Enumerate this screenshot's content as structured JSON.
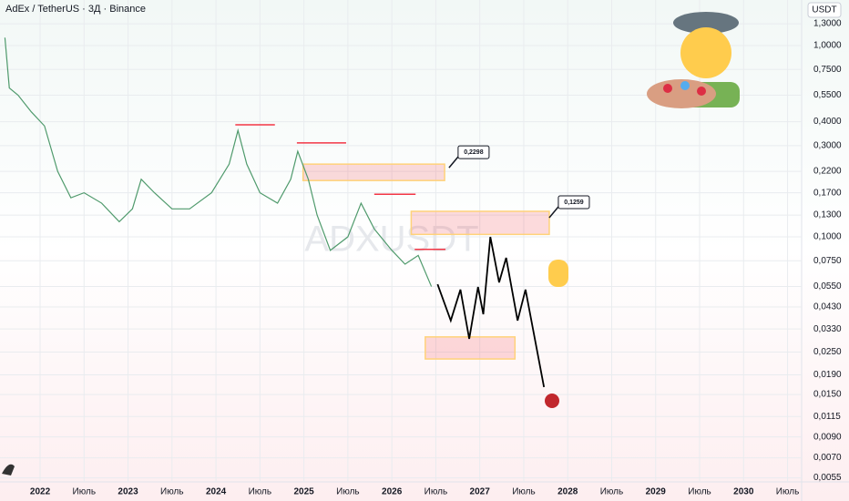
{
  "chart_data": {
    "type": "line",
    "title": "AdEx / TetherUS · 3Д · Binance",
    "y_axis_label": "USDT",
    "watermark": "ADXUSDT",
    "log_scale": true,
    "grid": true,
    "xlim": [
      2021.544,
      2030.66
    ],
    "ylim": [
      0.0048,
      1.73
    ],
    "xticks": [
      {
        "value": 2022,
        "label": "2022"
      },
      {
        "value": 2022.5,
        "label": "Июль"
      },
      {
        "value": 2023,
        "label": "2023"
      },
      {
        "value": 2023.5,
        "label": "Июль"
      },
      {
        "value": 2024,
        "label": "2024"
      },
      {
        "value": 2024.5,
        "label": "Июль"
      },
      {
        "value": 2025,
        "label": "2025"
      },
      {
        "value": 2025.5,
        "label": "Июль"
      },
      {
        "value": 2026,
        "label": "2026"
      },
      {
        "value": 2026.5,
        "label": "Июль"
      },
      {
        "value": 2027,
        "label": "2027"
      },
      {
        "value": 2027.5,
        "label": "Июль"
      },
      {
        "value": 2028,
        "label": "2028"
      },
      {
        "value": 2028.5,
        "label": "Июль"
      },
      {
        "value": 2029,
        "label": "2029"
      },
      {
        "value": 2029.5,
        "label": "Июль"
      },
      {
        "value": 2030,
        "label": "2030"
      },
      {
        "value": 2030.5,
        "label": "Июль"
      }
    ],
    "yticks": [
      {
        "value": 1.3,
        "label": "1,3000"
      },
      {
        "value": 1.0,
        "label": "1,0000"
      },
      {
        "value": 0.75,
        "label": "0,7500"
      },
      {
        "value": 0.55,
        "label": "0,5500"
      },
      {
        "value": 0.4,
        "label": "0,4000"
      },
      {
        "value": 0.3,
        "label": "0,3000"
      },
      {
        "value": 0.22,
        "label": "0,2200"
      },
      {
        "value": 0.17,
        "label": "0,1700"
      },
      {
        "value": 0.13,
        "label": "0,1300"
      },
      {
        "value": 0.1,
        "label": "0,1000"
      },
      {
        "value": 0.075,
        "label": "0,0750"
      },
      {
        "value": 0.055,
        "label": "0,0550"
      },
      {
        "value": 0.043,
        "label": "0,0430"
      },
      {
        "value": 0.033,
        "label": "0,0330"
      },
      {
        "value": 0.025,
        "label": "0,0250"
      },
      {
        "value": 0.019,
        "label": "0,0190"
      },
      {
        "value": 0.015,
        "label": "0,0150"
      },
      {
        "value": 0.0115,
        "label": "0,0115"
      },
      {
        "value": 0.009,
        "label": "0,0090"
      },
      {
        "value": 0.007,
        "label": "0,0070"
      },
      {
        "value": 0.0055,
        "label": "0,0055"
      }
    ],
    "series": [
      {
        "color": "#4f9a6c",
        "x": [
          2021.6,
          2021.65,
          2021.75,
          2021.9,
          2022.05,
          2022.2,
          2022.35,
          2022.5,
          2022.7,
          2022.9,
          2023.05,
          2023.15,
          2023.3,
          2023.5,
          2023.7,
          2023.95,
          2024.15,
          2024.25,
          2024.35,
          2024.5,
          2024.7,
          2024.85,
          2024.93,
          2025.05,
          2025.15,
          2025.3,
          2025.5,
          2025.65,
          2025.8,
          2026.0,
          2026.15,
          2026.3,
          2026.45
        ],
        "values": [
          1.1,
          0.6,
          0.55,
          0.45,
          0.38,
          0.22,
          0.16,
          0.17,
          0.15,
          0.12,
          0.14,
          0.2,
          0.17,
          0.14,
          0.14,
          0.17,
          0.24,
          0.36,
          0.24,
          0.17,
          0.15,
          0.2,
          0.28,
          0.2,
          0.13,
          0.085,
          0.1,
          0.15,
          0.11,
          0.085,
          0.072,
          0.08,
          0.055
        ]
      },
      {
        "color": "#000000",
        "x": [
          2026.52,
          2026.67,
          2026.78,
          2026.88,
          2026.98,
          2027.04,
          2027.12,
          2027.22,
          2027.3,
          2027.43,
          2027.52,
          2027.73
        ],
        "values": [
          0.0565,
          0.0365,
          0.053,
          0.0293,
          0.0547,
          0.0394,
          0.1,
          0.0578,
          0.0777,
          0.0365,
          0.053,
          0.0164
        ]
      }
    ],
    "zones": [
      {
        "x": [
          2024.99,
          2026.6
        ],
        "y": [
          0.197,
          0.24
        ]
      },
      {
        "x": [
          2026.22,
          2027.79
        ],
        "y": [
          0.103,
          0.136
        ]
      },
      {
        "x": [
          2026.38,
          2027.4
        ],
        "y": [
          0.023,
          0.03
        ]
      }
    ],
    "levels": [
      {
        "value": 0.385,
        "x": [
          2024.22,
          2024.67
        ]
      },
      {
        "value": 0.31,
        "x": [
          2024.92,
          2025.48
        ]
      },
      {
        "value": 0.167,
        "x": [
          2025.8,
          2026.27
        ]
      },
      {
        "value": 0.086,
        "x": [
          2026.26,
          2026.61
        ]
      }
    ],
    "annotations": [
      {
        "value": 0.2298,
        "label": "0,2298",
        "x": 2026.65
      },
      {
        "value": 0.1259,
        "label": "0,1259",
        "x": 2027.79
      }
    ]
  }
}
